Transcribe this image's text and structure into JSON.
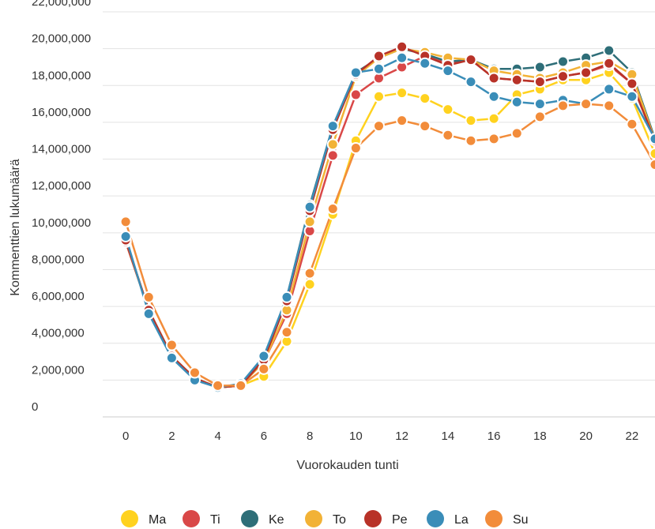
{
  "chart_data": {
    "type": "line",
    "xlabel": "Vuorokauden tunti",
    "ylabel": "Kommenttien lukumäärä",
    "x": [
      0,
      1,
      2,
      3,
      4,
      5,
      6,
      7,
      8,
      9,
      10,
      11,
      12,
      13,
      14,
      15,
      16,
      17,
      18,
      19,
      20,
      21,
      22,
      23
    ],
    "xlim": [
      -1,
      23
    ],
    "ylim": [
      0,
      22000000
    ],
    "x_ticks": [
      "0",
      "2",
      "4",
      "6",
      "8",
      "10",
      "12",
      "14",
      "16",
      "18",
      "20",
      "22"
    ],
    "y_ticks": [
      "0",
      "2,000,000",
      "4,000,000",
      "6,000,000",
      "8,000,000",
      "10,000,000",
      "12,000,000",
      "14,000,000",
      "16,000,000",
      "18,000,000",
      "20,000,000",
      "22,000,000"
    ],
    "grid": "horizontal",
    "legend_position": "bottom",
    "series": [
      {
        "name": "Ma",
        "color": "#FFD21F",
        "values": [
          9500000,
          5800000,
          3300000,
          2100000,
          1600000,
          1700000,
          2200000,
          4100000,
          7200000,
          11000000,
          15000000,
          17400000,
          17600000,
          17300000,
          16700000,
          16100000,
          16200000,
          17500000,
          17800000,
          18300000,
          18300000,
          18700000,
          17300000,
          14300000
        ]
      },
      {
        "name": "Ti",
        "color": "#D94848",
        "values": [
          9500000,
          5800000,
          3300000,
          2100000,
          1600000,
          1700000,
          3000000,
          5600000,
          10100000,
          14200000,
          17500000,
          18400000,
          19000000,
          19600000,
          19200000,
          19400000,
          18400000,
          18300000,
          18200000,
          18500000,
          18700000,
          19100000,
          18100000,
          15100000
        ]
      },
      {
        "name": "Ke",
        "color": "#2E6E78",
        "values": [
          9600000,
          5800000,
          3300000,
          2100000,
          1600000,
          1700000,
          3200000,
          6500000,
          11500000,
          15800000,
          18700000,
          19500000,
          20000000,
          19700000,
          19300000,
          19400000,
          18900000,
          18900000,
          19000000,
          19300000,
          19500000,
          19900000,
          18700000,
          15100000
        ]
      },
      {
        "name": "To",
        "color": "#F2B236",
        "values": [
          9600000,
          5800000,
          3300000,
          2100000,
          1600000,
          1700000,
          3000000,
          5800000,
          10600000,
          14800000,
          18500000,
          19500000,
          20000000,
          19800000,
          19500000,
          19400000,
          18800000,
          18600000,
          18400000,
          18700000,
          19100000,
          19300000,
          18600000,
          15000000
        ]
      },
      {
        "name": "Pe",
        "color": "#B83228",
        "values": [
          9600000,
          5800000,
          3300000,
          2100000,
          1600000,
          1700000,
          3100000,
          6300000,
          11200000,
          15600000,
          18600000,
          19600000,
          20100000,
          19600000,
          19100000,
          19400000,
          18400000,
          18300000,
          18200000,
          18500000,
          18700000,
          19200000,
          18100000,
          15000000
        ]
      },
      {
        "name": "La",
        "color": "#3A8DB8",
        "values": [
          9800000,
          5600000,
          3200000,
          2000000,
          1600000,
          1800000,
          3300000,
          6500000,
          11400000,
          15800000,
          18700000,
          18900000,
          19500000,
          19200000,
          18800000,
          18200000,
          17400000,
          17100000,
          17000000,
          17200000,
          17000000,
          17800000,
          17400000,
          15100000
        ]
      },
      {
        "name": "Su",
        "color": "#F28C3A",
        "values": [
          10600000,
          6500000,
          3900000,
          2400000,
          1700000,
          1700000,
          2600000,
          4600000,
          7800000,
          11300000,
          14600000,
          15800000,
          16100000,
          15800000,
          15300000,
          15000000,
          15100000,
          15400000,
          16300000,
          16900000,
          17000000,
          16900000,
          15900000,
          13700000
        ]
      }
    ]
  }
}
